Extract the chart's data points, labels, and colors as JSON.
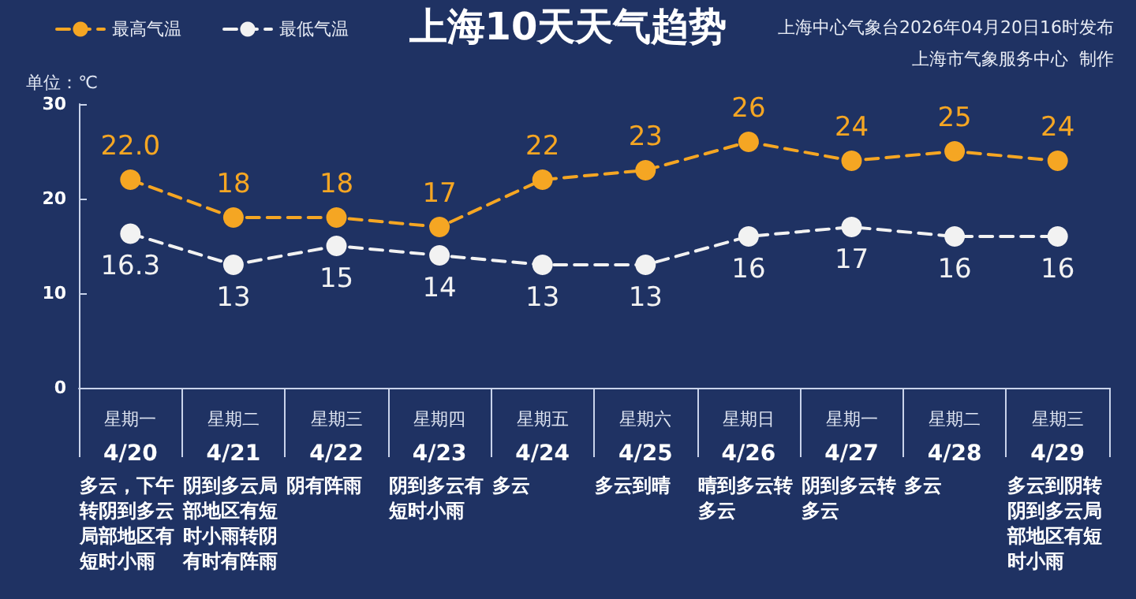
{
  "chart_data": {
    "type": "line",
    "title": "上海10天天气趋势",
    "ylabel": "单位：℃",
    "annotations": [
      "上海中心气象台2026年04月20日16时发布",
      "上海市气象服务中心  制作"
    ],
    "categories": [
      "星期一\n4/20\n多云，下午转阴到多云局部地区有短时小雨",
      "星期二\n4/21\n阴到多云局部地区有短时小雨转阴有时有阵雨",
      "星期三\n4/22\n阴有阵雨",
      "星期四\n4/23\n阴到多云有短时小雨",
      "星期五\n4/24\n多云",
      "星期六\n4/25\n多云到晴",
      "星期日\n4/26\n晴到多云转多云",
      "星期一\n4/27\n阴到多云转多云",
      "星期二\n4/28\n多云",
      "星期三\n4/29\n多云到阴转阴到多云局部地区有短时小雨"
    ],
    "series": [
      {
        "name": "最高气温",
        "color": "#f5a623",
        "values": [
          22,
          18,
          18,
          17,
          22,
          23,
          26,
          24,
          25,
          24
        ],
        "value_labels": [
          "22.0",
          "18",
          "18",
          "17",
          "22",
          "23",
          "26",
          "24",
          "25",
          "24"
        ]
      },
      {
        "name": "最低气温",
        "color": "#f2f2f2",
        "values": [
          16.3,
          13,
          15,
          14,
          13,
          13,
          16,
          17,
          16,
          16
        ],
        "value_labels": [
          "16.3",
          "13",
          "15",
          "14",
          "13",
          "13",
          "16",
          "17",
          "16",
          "16"
        ]
      }
    ],
    "ylim": [
      0,
      30
    ],
    "yticks": [
      0,
      10,
      20,
      30
    ],
    "grid": false,
    "legend": "top left",
    "marker": "circle",
    "line_style": "dashed"
  }
}
